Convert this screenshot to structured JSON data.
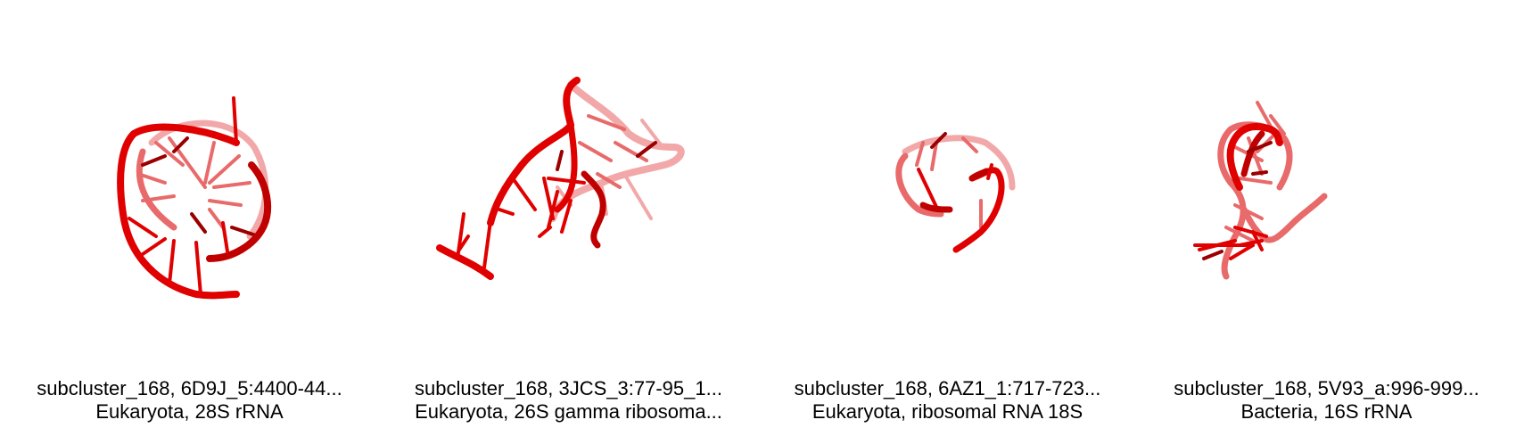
{
  "panels": [
    {
      "id": "6D9J",
      "line1": "subcluster_168, 6D9J_5:4400-44...",
      "line2": "Eukaryota, 28S rRNA"
    },
    {
      "id": "3JCS",
      "line1": "subcluster_168, 3JCS_3:77-95_1...",
      "line2": "Eukaryota, 26S gamma ribosoma..."
    },
    {
      "id": "6AZ1",
      "line1": "subcluster_168, 6AZ1_1:717-723...",
      "line2": "Eukaryota, ribosomal RNA 18S"
    },
    {
      "id": "5V93",
      "line1": "subcluster_168, 5V93_a:996-999...",
      "line2": "Bacteria, 16S rRNA"
    }
  ],
  "colors": {
    "strand_front": "#e00000",
    "strand_mid": "#e86a6a",
    "strand_back": "#f2a8a8",
    "strand_dark": "#9a0000"
  }
}
